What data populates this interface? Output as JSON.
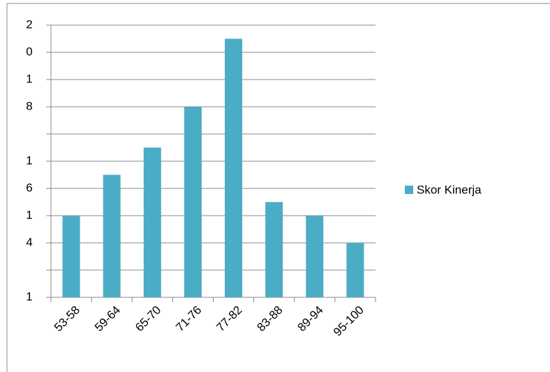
{
  "chart_data": {
    "type": "bar",
    "categories": [
      "53-58",
      "59-64",
      "65-70",
      "71-76",
      "77-82",
      "83-88",
      "89-94",
      "95-100"
    ],
    "series": [
      {
        "name": "Skor Kinerja",
        "color": "#4bacc6",
        "values": [
          6,
          9,
          11,
          14,
          19,
          7,
          6,
          4
        ]
      }
    ],
    "ylim": [
      0,
      20
    ],
    "yticks": [
      0,
      2,
      4,
      6,
      8,
      10,
      12,
      14,
      16,
      18,
      20
    ],
    "y_label_fragments": [
      "2",
      "0",
      "1",
      "8",
      "1",
      "6",
      "1",
      "4",
      "1"
    ],
    "grid": true,
    "legend": "right"
  }
}
